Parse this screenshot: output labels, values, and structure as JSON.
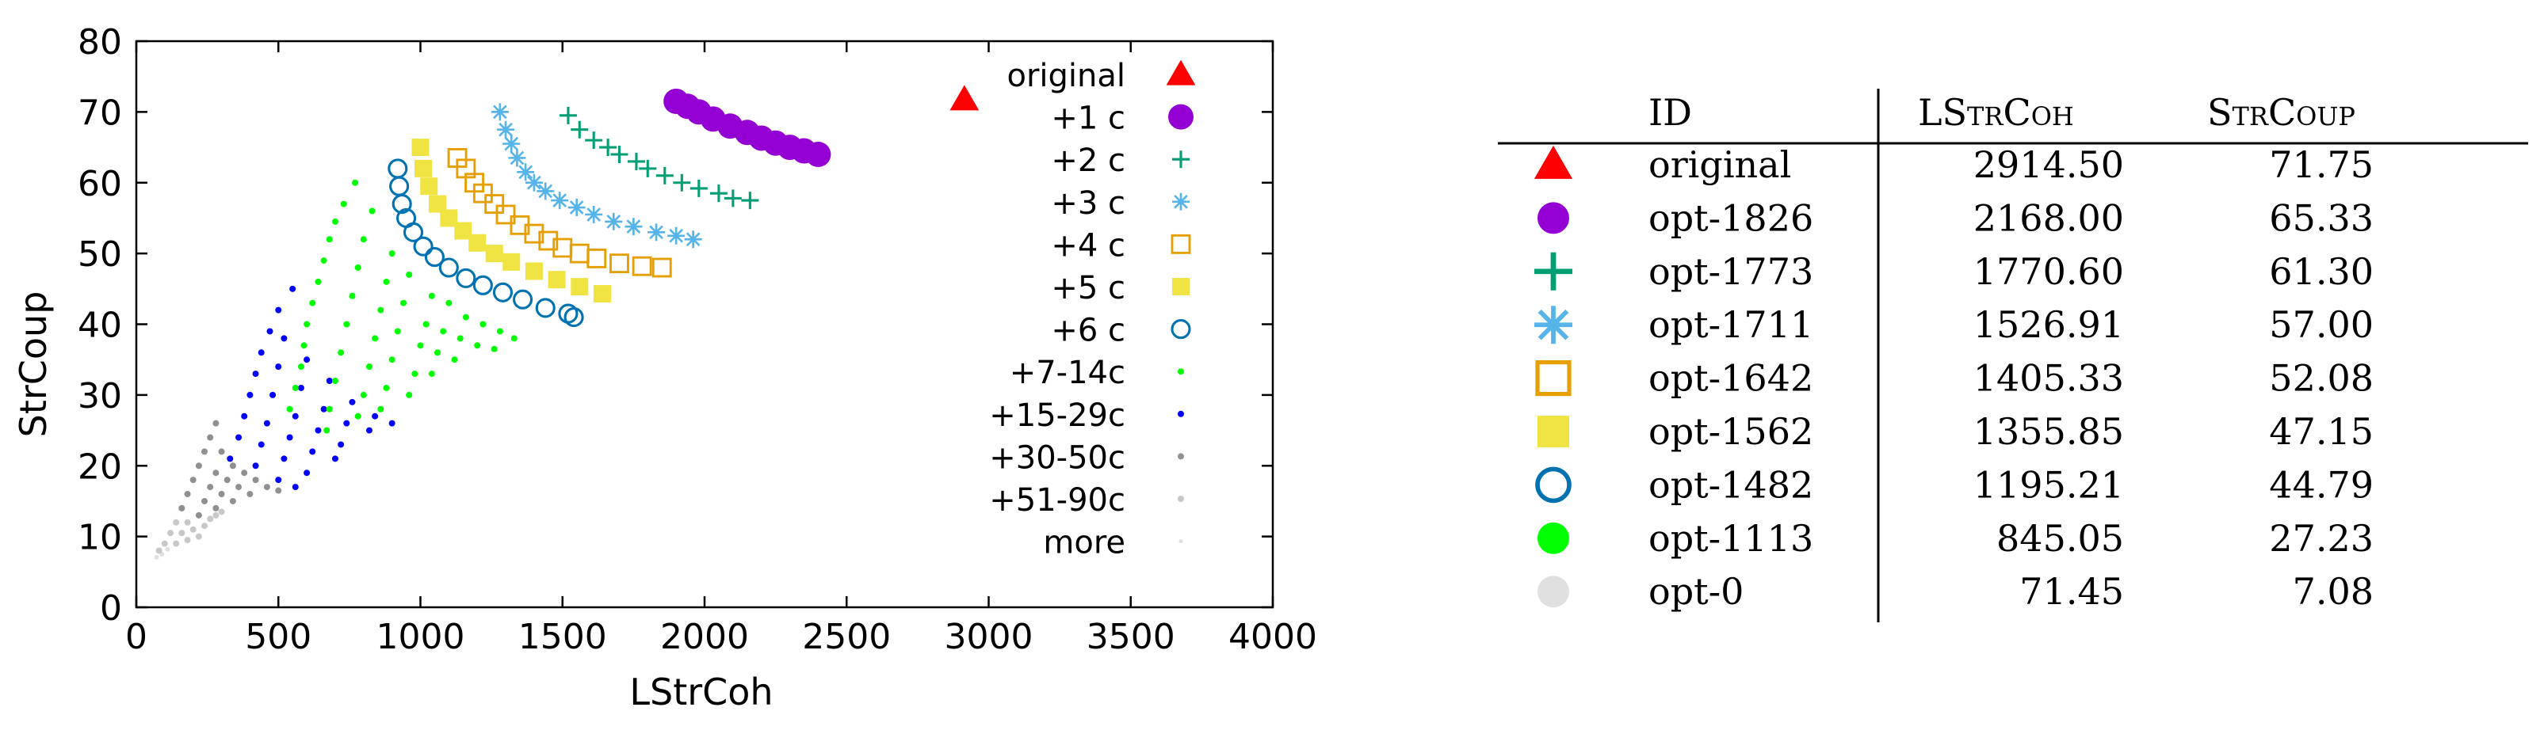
{
  "chart_data": {
    "type": "scatter",
    "xlabel": "LStrCoh",
    "ylabel": "StrCoup",
    "xlim": [
      0,
      4000
    ],
    "ylim": [
      0,
      80
    ],
    "xticks": [
      "0",
      "500",
      "1000",
      "1500",
      "2000",
      "2500",
      "3000",
      "3500",
      "4000"
    ],
    "yticks": [
      "0",
      "10",
      "20",
      "30",
      "40",
      "50",
      "60",
      "70",
      "80"
    ],
    "grid": false,
    "legend_position": "right",
    "series": [
      {
        "name": "original",
        "marker": "triangle",
        "color": "#ff0000",
        "size": "large",
        "points": [
          [
            2914.5,
            71.75
          ]
        ]
      },
      {
        "name": "+1 c",
        "marker": "filled-circle",
        "color": "#9400d3",
        "size": "large",
        "points": [
          [
            1900,
            71.5
          ],
          [
            1940,
            70.8
          ],
          [
            1980,
            70.0
          ],
          [
            2030,
            69.0
          ],
          [
            2090,
            68.0
          ],
          [
            2150,
            67.1
          ],
          [
            2200,
            66.3
          ],
          [
            2250,
            65.6
          ],
          [
            2300,
            65.0
          ],
          [
            2350,
            64.5
          ],
          [
            2400,
            64.0
          ]
        ]
      },
      {
        "name": "+2 c",
        "marker": "plus",
        "color": "#009e73",
        "size": "medium",
        "points": [
          [
            1520,
            69.5
          ],
          [
            1560,
            67.5
          ],
          [
            1610,
            66.0
          ],
          [
            1660,
            65.0
          ],
          [
            1700,
            64.0
          ],
          [
            1760,
            63.0
          ],
          [
            1800,
            62.0
          ],
          [
            1860,
            61.0
          ],
          [
            1920,
            60.0
          ],
          [
            1980,
            59.2
          ],
          [
            2050,
            58.5
          ],
          [
            2100,
            57.8
          ],
          [
            2160,
            57.5
          ]
        ]
      },
      {
        "name": "+3 c",
        "marker": "star",
        "color": "#56b4e9",
        "size": "medium",
        "points": [
          [
            1280,
            70.0
          ],
          [
            1300,
            67.5
          ],
          [
            1320,
            65.5
          ],
          [
            1340,
            63.5
          ],
          [
            1370,
            61.5
          ],
          [
            1400,
            60.0
          ],
          [
            1440,
            58.8
          ],
          [
            1490,
            57.5
          ],
          [
            1550,
            56.5
          ],
          [
            1610,
            55.5
          ],
          [
            1680,
            54.5
          ],
          [
            1750,
            53.8
          ],
          [
            1830,
            53.0
          ],
          [
            1900,
            52.5
          ],
          [
            1960,
            52.0
          ]
        ]
      },
      {
        "name": "+4 c",
        "marker": "open-square",
        "color": "#e69f00",
        "size": "medium",
        "points": [
          [
            1130,
            63.5
          ],
          [
            1160,
            62.0
          ],
          [
            1190,
            60.0
          ],
          [
            1220,
            58.5
          ],
          [
            1260,
            57.0
          ],
          [
            1300,
            55.5
          ],
          [
            1350,
            54.0
          ],
          [
            1400,
            52.8
          ],
          [
            1450,
            51.8
          ],
          [
            1500,
            50.8
          ],
          [
            1560,
            50.0
          ],
          [
            1620,
            49.3
          ],
          [
            1700,
            48.6
          ],
          [
            1780,
            48.2
          ],
          [
            1850,
            48.0
          ]
        ]
      },
      {
        "name": "+5 c",
        "marker": "filled-square",
        "color": "#f0e442",
        "size": "medium",
        "points": [
          [
            1000,
            65.0
          ],
          [
            1010,
            62.0
          ],
          [
            1030,
            59.5
          ],
          [
            1060,
            57.0
          ],
          [
            1100,
            55.0
          ],
          [
            1150,
            53.2
          ],
          [
            1200,
            51.5
          ],
          [
            1260,
            50.0
          ],
          [
            1320,
            48.8
          ],
          [
            1400,
            47.5
          ],
          [
            1480,
            46.3
          ],
          [
            1560,
            45.3
          ],
          [
            1640,
            44.3
          ]
        ]
      },
      {
        "name": "+6 c",
        "marker": "open-circle",
        "color": "#0072b2",
        "size": "medium",
        "points": [
          [
            920,
            62.0
          ],
          [
            925,
            59.5
          ],
          [
            935,
            57.0
          ],
          [
            950,
            55.0
          ],
          [
            975,
            53.0
          ],
          [
            1010,
            51.0
          ],
          [
            1050,
            49.5
          ],
          [
            1100,
            48.0
          ],
          [
            1160,
            46.5
          ],
          [
            1220,
            45.5
          ],
          [
            1290,
            44.5
          ],
          [
            1360,
            43.5
          ],
          [
            1440,
            42.3
          ],
          [
            1520,
            41.5
          ],
          [
            1540,
            41.0
          ]
        ]
      },
      {
        "name": "+7-14c",
        "marker": "dot",
        "color": "#00ff00",
        "size": "small",
        "points": [
          [
            770,
            60.0
          ],
          [
            730,
            57.0
          ],
          [
            700,
            54.5
          ],
          [
            680,
            52.0
          ],
          [
            660,
            49.0
          ],
          [
            640,
            46.0
          ],
          [
            620,
            43.0
          ],
          [
            600,
            40.0
          ],
          [
            590,
            37.0
          ],
          [
            580,
            34.0
          ],
          [
            560,
            31.0
          ],
          [
            540,
            28.0
          ],
          [
            830,
            56.0
          ],
          [
            800,
            52.0
          ],
          [
            780,
            48.0
          ],
          [
            760,
            44.0
          ],
          [
            740,
            40.0
          ],
          [
            720,
            36.0
          ],
          [
            700,
            32.0
          ],
          [
            680,
            28.0
          ],
          [
            670,
            25.0
          ],
          [
            900,
            50.0
          ],
          [
            880,
            46.0
          ],
          [
            860,
            42.0
          ],
          [
            840,
            38.0
          ],
          [
            820,
            34.0
          ],
          [
            800,
            30.0
          ],
          [
            780,
            27.0
          ],
          [
            960,
            47.0
          ],
          [
            940,
            43.0
          ],
          [
            920,
            39.0
          ],
          [
            900,
            35.0
          ],
          [
            880,
            31.0
          ],
          [
            860,
            28.0
          ],
          [
            1040,
            44.0
          ],
          [
            1020,
            40.0
          ],
          [
            1000,
            37.0
          ],
          [
            980,
            33.0
          ],
          [
            960,
            30.0
          ],
          [
            1100,
            43.0
          ],
          [
            1080,
            39.0
          ],
          [
            1060,
            36.0
          ],
          [
            1040,
            33.0
          ],
          [
            1160,
            41.0
          ],
          [
            1140,
            38.0
          ],
          [
            1120,
            35.0
          ],
          [
            1220,
            40.0
          ],
          [
            1200,
            37.0
          ],
          [
            1280,
            39.0
          ],
          [
            1260,
            36.5
          ],
          [
            1330,
            38.0
          ]
        ]
      },
      {
        "name": "+15-29c",
        "marker": "dot",
        "color": "#0000ff",
        "size": "small",
        "points": [
          [
            550,
            45.0
          ],
          [
            500,
            42.0
          ],
          [
            470,
            39.0
          ],
          [
            440,
            36.0
          ],
          [
            420,
            33.0
          ],
          [
            400,
            30.0
          ],
          [
            380,
            27.0
          ],
          [
            360,
            24.0
          ],
          [
            330,
            21.0
          ],
          [
            520,
            38.0
          ],
          [
            500,
            34.0
          ],
          [
            480,
            30.0
          ],
          [
            460,
            26.0
          ],
          [
            440,
            23.0
          ],
          [
            420,
            20.0
          ],
          [
            600,
            35.0
          ],
          [
            580,
            31.0
          ],
          [
            560,
            27.0
          ],
          [
            540,
            24.0
          ],
          [
            520,
            21.0
          ],
          [
            500,
            18.0
          ],
          [
            680,
            32.0
          ],
          [
            660,
            28.0
          ],
          [
            640,
            25.0
          ],
          [
            620,
            22.0
          ],
          [
            600,
            19.0
          ],
          [
            760,
            29.0
          ],
          [
            740,
            26.0
          ],
          [
            720,
            23.0
          ],
          [
            700,
            21.0
          ],
          [
            840,
            27.0
          ],
          [
            820,
            25.0
          ],
          [
            900,
            26.0
          ],
          [
            560,
            17.0
          ]
        ]
      },
      {
        "name": "+30-50c",
        "marker": "dot",
        "color": "#909090",
        "size": "small",
        "points": [
          [
            280,
            26.0
          ],
          [
            260,
            24.0
          ],
          [
            240,
            22.0
          ],
          [
            220,
            20.0
          ],
          [
            200,
            18.0
          ],
          [
            180,
            16.0
          ],
          [
            160,
            14.0
          ],
          [
            300,
            22.0
          ],
          [
            280,
            19.0
          ],
          [
            260,
            17.0
          ],
          [
            240,
            15.0
          ],
          [
            220,
            13.0
          ],
          [
            340,
            20.0
          ],
          [
            320,
            18.0
          ],
          [
            300,
            16.0
          ],
          [
            280,
            14.0
          ],
          [
            380,
            19.0
          ],
          [
            360,
            17.0
          ],
          [
            340,
            15.0
          ],
          [
            420,
            18.0
          ],
          [
            400,
            16.0
          ],
          [
            460,
            17.0
          ],
          [
            500,
            16.5
          ]
        ]
      },
      {
        "name": "+51-90c",
        "marker": "dot",
        "color": "#c8c8c8",
        "size": "small",
        "points": [
          [
            160,
            14.0
          ],
          [
            140,
            12.0
          ],
          [
            120,
            10.5
          ],
          [
            100,
            9.0
          ],
          [
            80,
            8.0
          ],
          [
            180,
            12.0
          ],
          [
            160,
            10.5
          ],
          [
            140,
            9.0
          ],
          [
            200,
            11.0
          ],
          [
            180,
            9.5
          ],
          [
            220,
            10.0
          ],
          [
            240,
            11.5
          ],
          [
            260,
            12.5
          ],
          [
            280,
            13.0
          ],
          [
            300,
            13.5
          ]
        ]
      },
      {
        "name": "more",
        "marker": "dot",
        "color": "#e0e0e0",
        "size": "tiny",
        "points": [
          [
            71.45,
            7.08
          ],
          [
            90,
            7.5
          ],
          [
            110,
            8.2
          ]
        ]
      }
    ]
  },
  "table": {
    "headers": [
      "ID",
      "LStrCoh",
      "StrCoup"
    ],
    "rows": [
      {
        "marker": "triangle",
        "color": "#ff0000",
        "id": "original",
        "lstrcoh": "2914.50",
        "strcoup": "71.75"
      },
      {
        "marker": "filled-circle",
        "color": "#9400d3",
        "id": "opt-1826",
        "lstrcoh": "2168.00",
        "strcoup": "65.33"
      },
      {
        "marker": "plus",
        "color": "#009e73",
        "id": "opt-1773",
        "lstrcoh": "1770.60",
        "strcoup": "61.30"
      },
      {
        "marker": "star",
        "color": "#56b4e9",
        "id": "opt-1711",
        "lstrcoh": "1526.91",
        "strcoup": "57.00"
      },
      {
        "marker": "open-square",
        "color": "#e69f00",
        "id": "opt-1642",
        "lstrcoh": "1405.33",
        "strcoup": "52.08"
      },
      {
        "marker": "filled-square",
        "color": "#f0e442",
        "id": "opt-1562",
        "lstrcoh": "1355.85",
        "strcoup": "47.15"
      },
      {
        "marker": "open-circle",
        "color": "#0072b2",
        "id": "opt-1482",
        "lstrcoh": "1195.21",
        "strcoup": "44.79"
      },
      {
        "marker": "filled-circle",
        "color": "#00ff00",
        "id": "opt-1113",
        "lstrcoh": "845.05",
        "strcoup": "27.23"
      },
      {
        "marker": "filled-circle",
        "color": "#e0e0e0",
        "id": "opt-0",
        "lstrcoh": "71.45",
        "strcoup": "7.08"
      }
    ]
  }
}
